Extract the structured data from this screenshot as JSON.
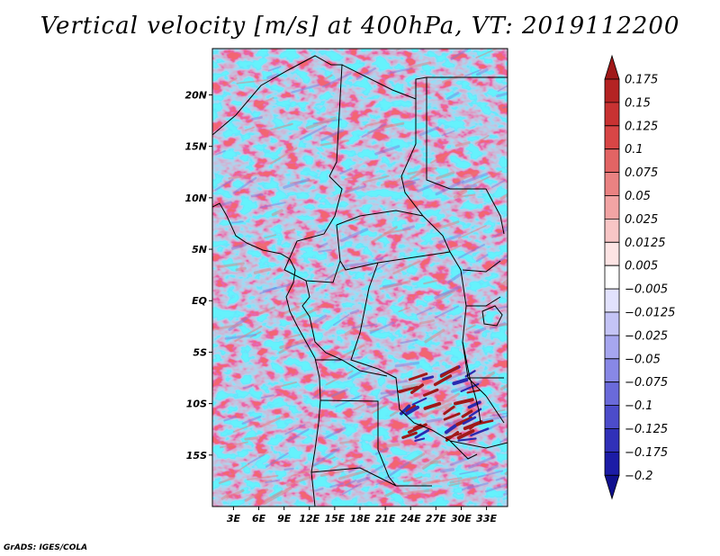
{
  "title": "Vertical velocity [m/s] at 400hPa, VT: 2019112200",
  "credit": "GrADS: IGES/COLA",
  "map": {
    "lat_labels": [
      "20N",
      "15N",
      "10N",
      "5N",
      "EQ",
      "5S",
      "10S",
      "15S"
    ],
    "lat_values": [
      20,
      15,
      10,
      5,
      0,
      -5,
      -10,
      -15
    ],
    "lon_labels": [
      "3E",
      "6E",
      "9E",
      "12E",
      "15E",
      "18E",
      "21E",
      "24E",
      "27E",
      "30E",
      "33E"
    ],
    "lon_values": [
      3,
      6,
      9,
      12,
      15,
      18,
      21,
      24,
      27,
      30,
      33
    ],
    "lon_range": [
      0.5,
      35.5
    ],
    "lat_range": [
      -20,
      24.5
    ]
  },
  "colorbar": {
    "labels": [
      "0.175",
      "0.15",
      "0.125",
      "0.1",
      "0.075",
      "0.05",
      "0.025",
      "0.0125",
      "0.005",
      "-0.005",
      "-0.0125",
      "-0.025",
      "-0.05",
      "-0.075",
      "-0.1",
      "-0.125",
      "-0.175",
      "-0.2"
    ],
    "colors": [
      "#a01818",
      "#b42323",
      "#c83232",
      "#d84646",
      "#e26464",
      "#ea8282",
      "#f2a4a4",
      "#f8c6c6",
      "#fde4e4",
      "#ffffff",
      "#e2e2fd",
      "#c4c4f6",
      "#a6a6ef",
      "#8888e6",
      "#6a6ada",
      "#4c4cca",
      "#3030b8",
      "#1c1ca6",
      "#10108e"
    ]
  }
}
